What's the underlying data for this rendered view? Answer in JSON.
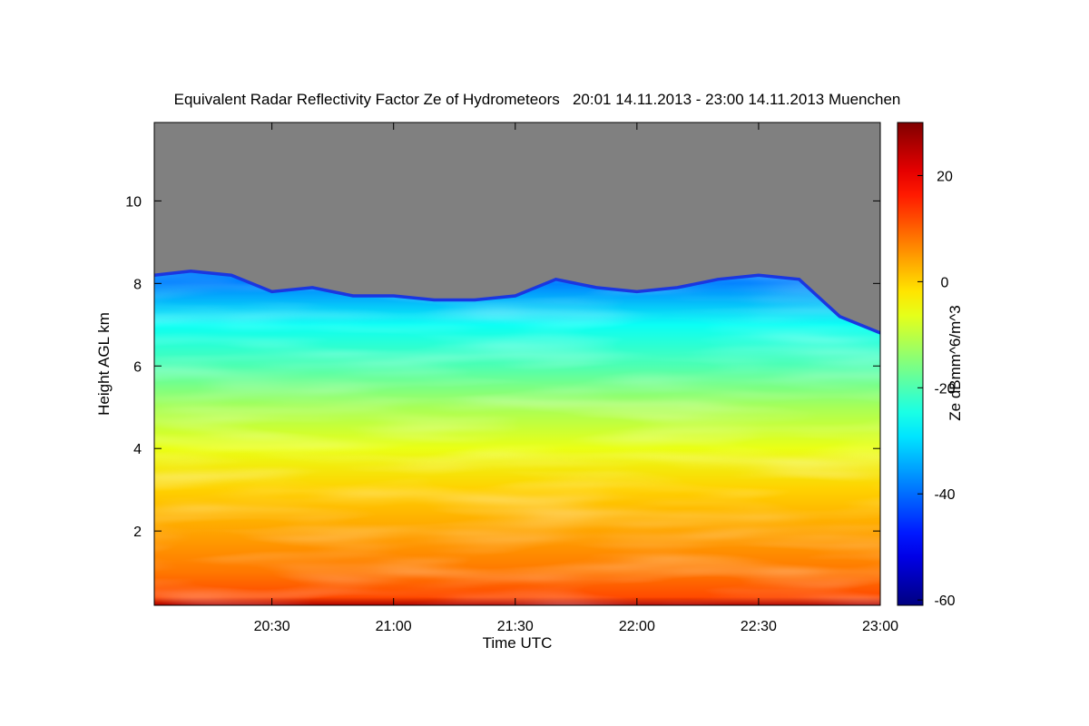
{
  "chart_data": {
    "type": "heatmap",
    "title": "Equivalent Radar Reflectivity Factor Ze of Hydrometeors   20:01 14.11.2013 - 23:00 14.11.2013 Muenchen",
    "xlabel": "Time UTC",
    "ylabel": "Height AGL km",
    "xlim": [
      "20:01",
      "23:00"
    ],
    "ylim": [
      0.2,
      11.9
    ],
    "x_ticks": [
      "20:30",
      "21:00",
      "21:30",
      "22:00",
      "22:30",
      "23:00"
    ],
    "y_ticks": [
      2,
      4,
      6,
      8,
      10
    ],
    "colorbar": {
      "label": "Ze dBmm^6/m^3",
      "range": [
        -61,
        30
      ],
      "ticks": [
        20,
        0,
        -20,
        -40,
        -60
      ],
      "colormap": "jet"
    },
    "no_data_color": "#808080",
    "echo_top": {
      "x": [
        "20:01",
        "20:10",
        "20:20",
        "20:30",
        "20:40",
        "20:50",
        "21:00",
        "21:10",
        "21:20",
        "21:30",
        "21:40",
        "21:50",
        "22:00",
        "22:10",
        "22:20",
        "22:30",
        "22:40",
        "22:50",
        "23:00"
      ],
      "height_km": [
        8.2,
        8.3,
        8.2,
        7.8,
        7.9,
        7.7,
        7.7,
        7.6,
        7.6,
        7.7,
        8.1,
        7.9,
        7.8,
        7.9,
        8.1,
        8.2,
        8.1,
        7.2,
        6.8
      ]
    },
    "profile": {
      "height_km": [
        0.2,
        0.4,
        1.0,
        2.0,
        3.0,
        4.0,
        5.0,
        6.0,
        7.0,
        8.0
      ],
      "ze_dbz": [
        26,
        12,
        8,
        4,
        0,
        -6,
        -12,
        -20,
        -26,
        -38
      ]
    }
  }
}
